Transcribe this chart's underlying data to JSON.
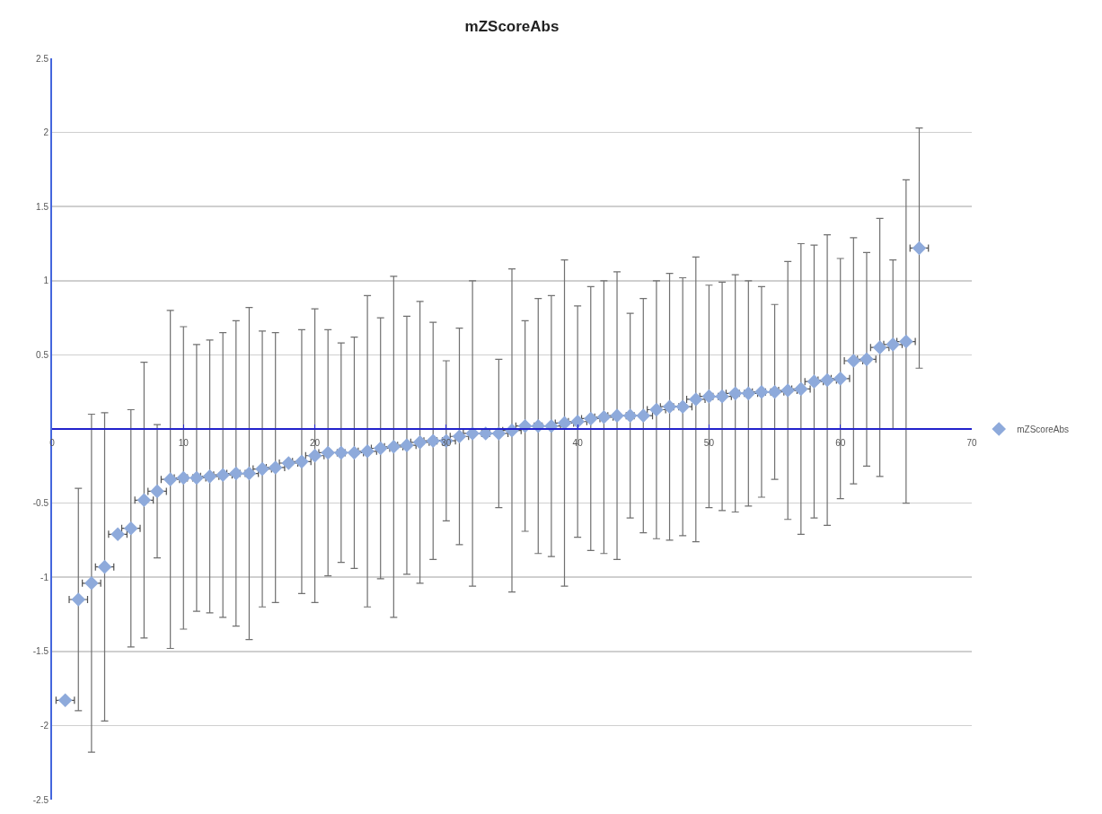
{
  "chart_data": {
    "type": "scatter",
    "title": "mZScoreAbs",
    "x": [
      1,
      2,
      3,
      4,
      5,
      6,
      7,
      8,
      9,
      10,
      11,
      12,
      13,
      14,
      15,
      16,
      17,
      18,
      19,
      20,
      21,
      22,
      23,
      24,
      25,
      26,
      27,
      28,
      29,
      30,
      31,
      32,
      33,
      34,
      35,
      36,
      37,
      38,
      39,
      40,
      41,
      42,
      43,
      44,
      45,
      46,
      47,
      48,
      49,
      50,
      51,
      52,
      53,
      54,
      55,
      56,
      57,
      58,
      59,
      60,
      61,
      62,
      63,
      64,
      65,
      66
    ],
    "series": [
      {
        "name": "mZScoreAbs",
        "color": "#8eaadb",
        "values": [
          -1.83,
          -1.15,
          -1.04,
          -0.93,
          -0.71,
          -0.67,
          -0.48,
          -0.42,
          -0.34,
          -0.33,
          -0.33,
          -0.32,
          -0.31,
          -0.3,
          -0.3,
          -0.27,
          -0.26,
          -0.23,
          -0.22,
          -0.18,
          -0.16,
          -0.16,
          -0.16,
          -0.15,
          -0.13,
          -0.12,
          -0.11,
          -0.09,
          -0.08,
          -0.08,
          -0.05,
          -0.03,
          -0.03,
          -0.03,
          -0.01,
          0.02,
          0.02,
          0.02,
          0.04,
          0.05,
          0.07,
          0.08,
          0.09,
          0.09,
          0.09,
          0.13,
          0.15,
          0.15,
          0.2,
          0.22,
          0.22,
          0.24,
          0.24,
          0.25,
          0.25,
          0.26,
          0.27,
          0.32,
          0.33,
          0.34,
          0.46,
          0.47,
          0.55,
          0.57,
          0.59,
          1.22
        ],
        "errors": [
          null,
          0.75,
          1.14,
          1.04,
          null,
          0.8,
          0.93,
          0.45,
          1.14,
          1.02,
          0.9,
          0.92,
          0.96,
          1.03,
          1.12,
          0.93,
          0.91,
          null,
          0.89,
          0.99,
          0.83,
          0.74,
          0.78,
          1.05,
          0.88,
          1.15,
          0.87,
          0.95,
          0.8,
          0.54,
          0.73,
          1.03,
          null,
          0.5,
          1.09,
          0.71,
          0.86,
          0.88,
          1.1,
          0.78,
          0.89,
          0.92,
          0.97,
          0.69,
          0.79,
          0.87,
          0.9,
          0.87,
          0.96,
          0.75,
          0.77,
          0.8,
          0.76,
          0.71,
          0.59,
          0.87,
          0.98,
          0.92,
          0.98,
          0.81,
          0.83,
          0.72,
          0.87,
          0.57,
          1.09,
          0.81
        ],
        "xerrors": [
          0.7,
          0.7,
          0.7,
          0.7,
          0.7,
          0.7,
          0.7,
          0.7,
          0.7,
          0.7,
          0.7,
          0.7,
          0.7,
          0.7,
          0.7,
          0.7,
          0.7,
          0.7,
          0.7,
          0.7,
          0.7,
          null,
          0.7,
          0.7,
          0.7,
          0.7,
          0.7,
          0.7,
          0.7,
          0.7,
          0.7,
          0.7,
          null,
          0.7,
          0.7,
          0.7,
          null,
          0.7,
          0.7,
          0.7,
          0.7,
          0.7,
          0.7,
          null,
          0.7,
          0.7,
          0.7,
          0.7,
          0.7,
          0.7,
          0.7,
          0.7,
          0.7,
          0.7,
          0.7,
          0.7,
          0.7,
          0.7,
          0.7,
          0.7,
          0.7,
          0.7,
          0.7,
          0.7,
          0.7,
          0.7
        ]
      }
    ],
    "xlim": [
      0,
      70
    ],
    "xticks": [
      0,
      10,
      20,
      30,
      40,
      50,
      60,
      70
    ],
    "ylim": [
      -2.5,
      2.5
    ],
    "yticks": [
      -2.5,
      -2,
      -1.5,
      -1,
      -0.5,
      {
        "value": 0,
        "label": null
      },
      0.5,
      1,
      1.5,
      2,
      2.5
    ],
    "grid": "y",
    "legend": "right",
    "marker": "diamond"
  }
}
